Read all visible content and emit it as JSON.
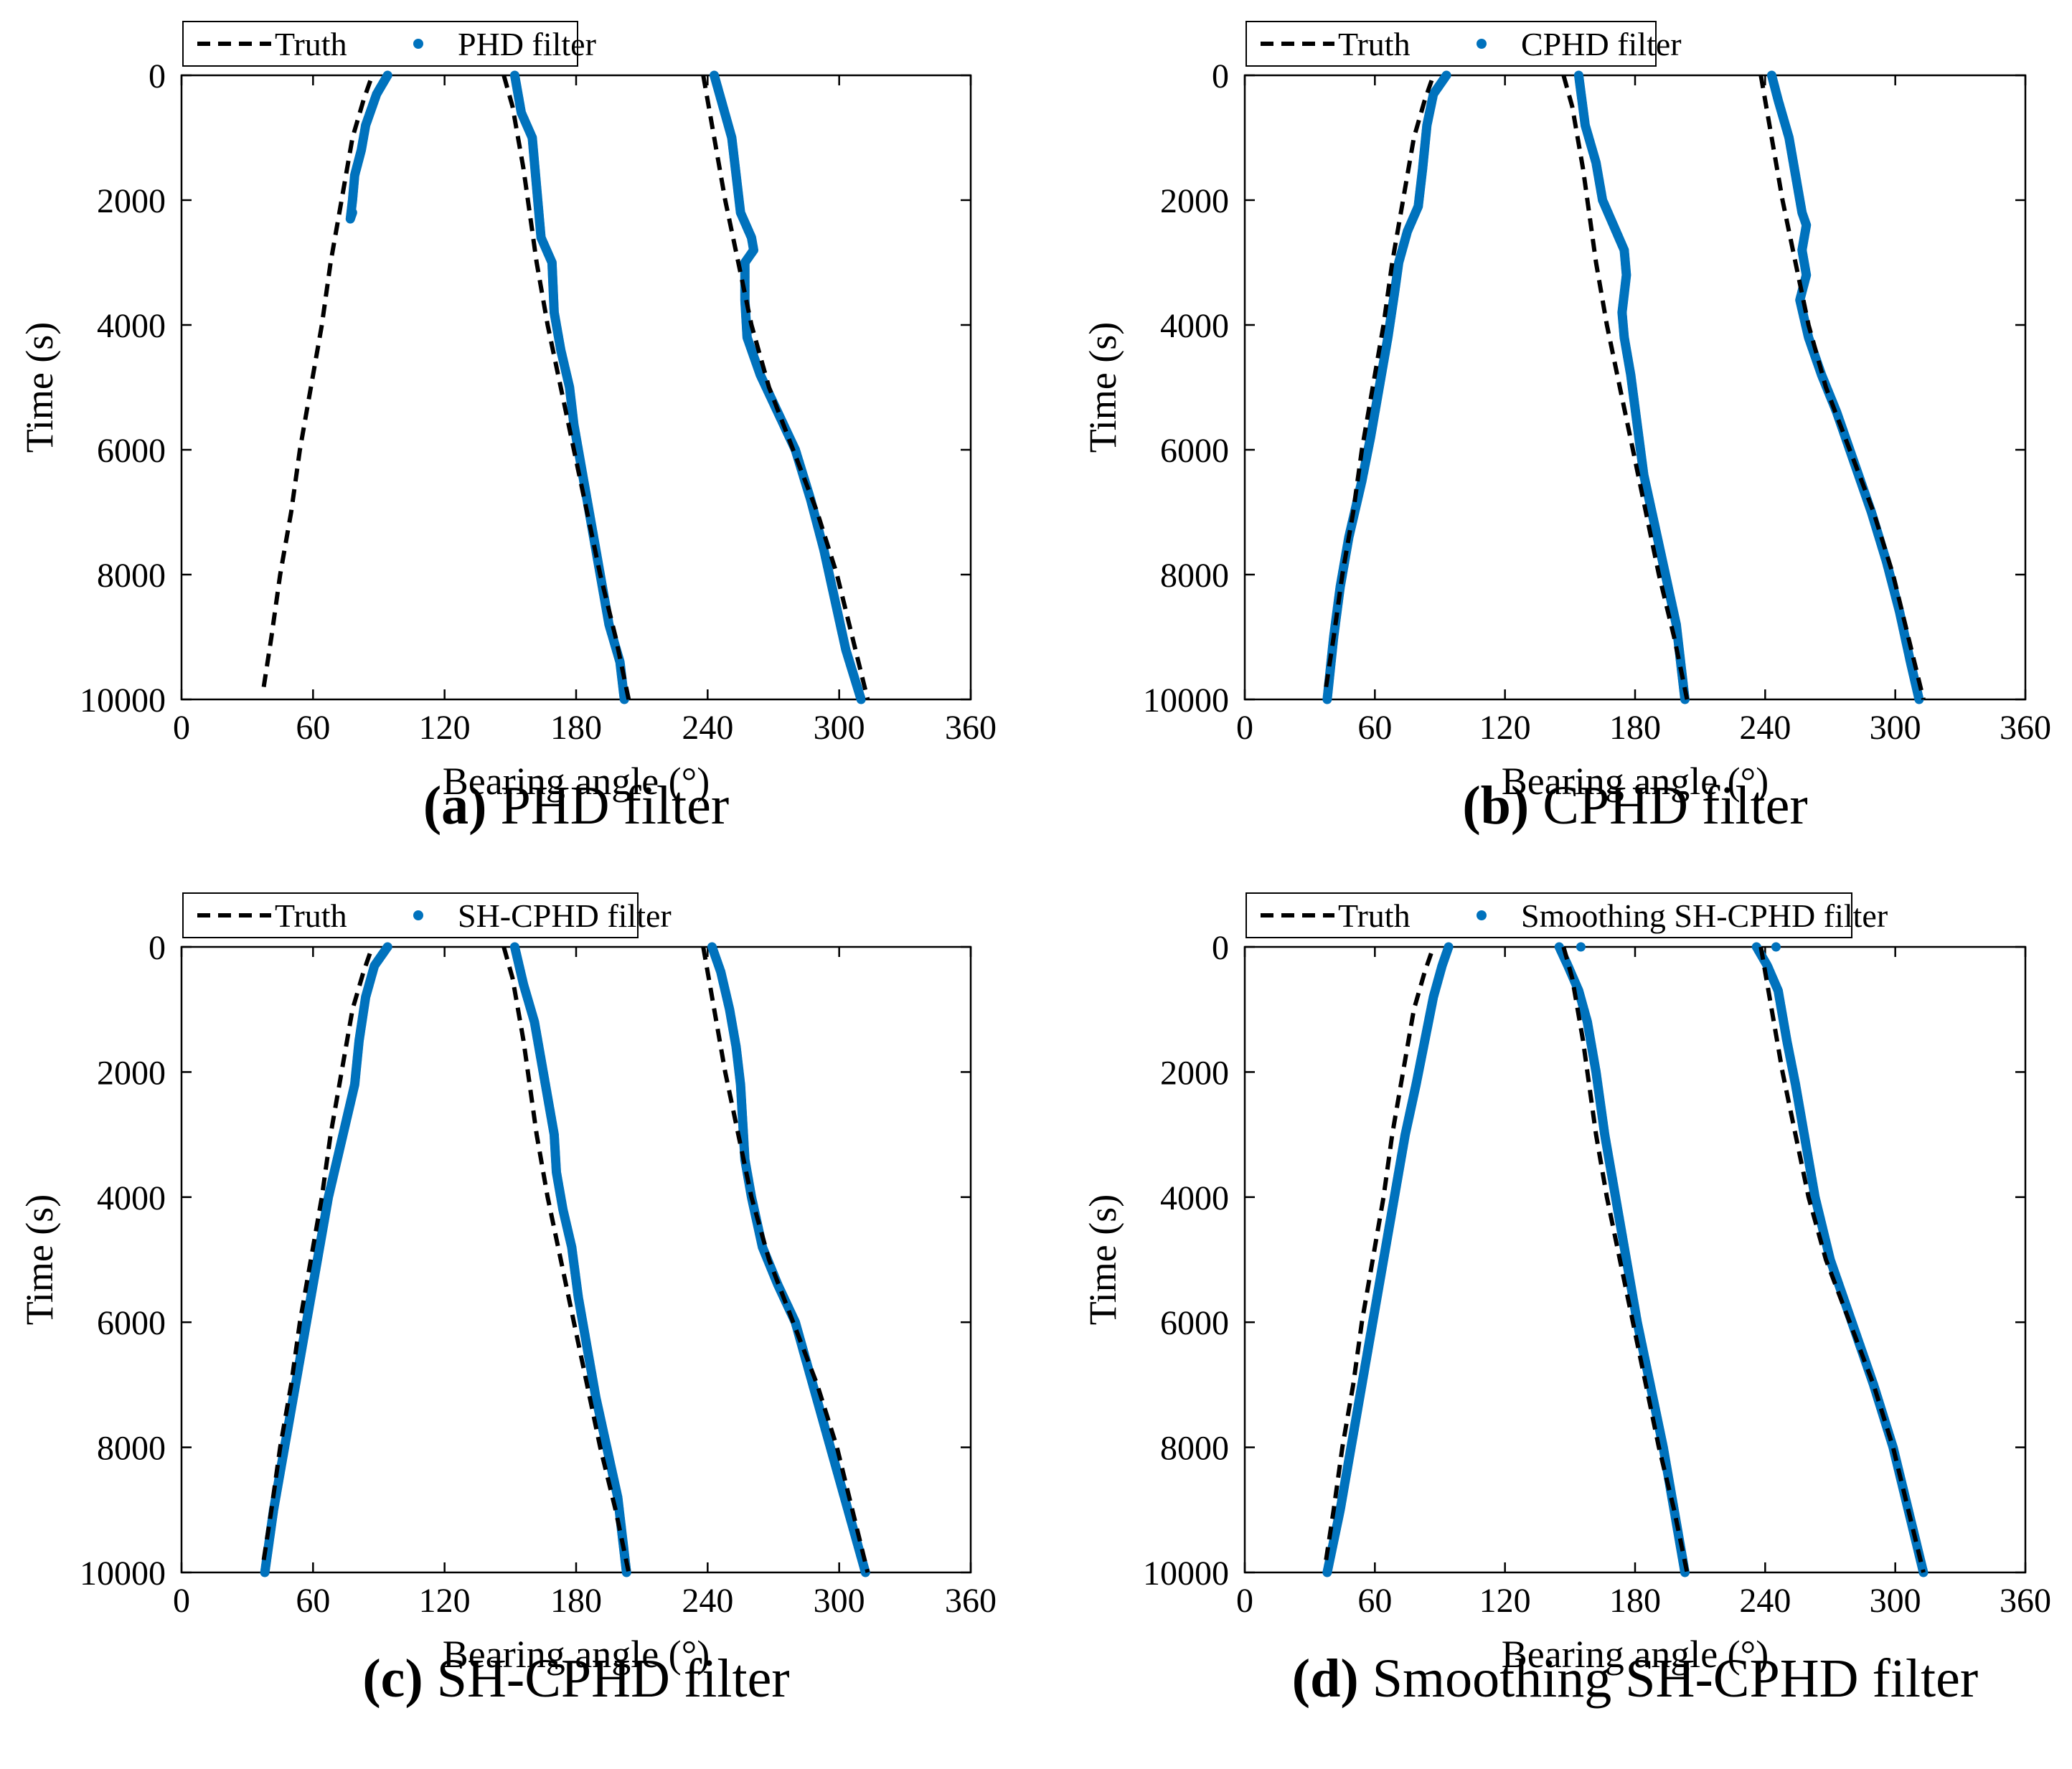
{
  "colors": {
    "truth": "#000000",
    "estimate": "#0072BD",
    "axes": "#000000",
    "background": "#ffffff"
  },
  "truth_tracks": [
    {
      "name": "target-1",
      "points": [
        [
          37.5,
          9800
        ],
        [
          41,
          9000
        ],
        [
          45,
          8000
        ],
        [
          50,
          7000
        ],
        [
          54,
          6000
        ],
        [
          59,
          5000
        ],
        [
          64,
          4000
        ],
        [
          68,
          3000
        ],
        [
          73,
          2000
        ],
        [
          78,
          1000
        ],
        [
          83,
          400
        ],
        [
          87,
          0
        ]
      ]
    },
    {
      "name": "target-2",
      "points": [
        [
          147,
          0
        ],
        [
          151,
          500
        ],
        [
          156,
          1500
        ],
        [
          162,
          3000
        ],
        [
          167,
          4000
        ],
        [
          173,
          5000
        ],
        [
          179,
          6000
        ],
        [
          185,
          7000
        ],
        [
          191,
          8000
        ],
        [
          198,
          9000
        ],
        [
          204,
          10000
        ]
      ]
    },
    {
      "name": "target-3",
      "points": [
        [
          238,
          0
        ],
        [
          243,
          1000
        ],
        [
          248,
          2000
        ],
        [
          254,
          3000
        ],
        [
          260,
          4000
        ],
        [
          268,
          5000
        ],
        [
          279,
          6000
        ],
        [
          290,
          7000
        ],
        [
          299,
          8000
        ],
        [
          306,
          9000
        ],
        [
          313,
          10000
        ]
      ]
    }
  ],
  "chart_data": [
    {
      "type": "line",
      "id": "a",
      "caption_letter": "(a)",
      "caption_text": "PHD filter",
      "legend": {
        "truth": "Truth",
        "estimate": "PHD filter"
      },
      "xlabel": "Bearing angle (°)",
      "ylabel": "Time (s)",
      "xlim": [
        0,
        360
      ],
      "ylim": [
        0,
        10000
      ],
      "y_reversed": true,
      "xticks": [
        0,
        60,
        120,
        180,
        240,
        300,
        360
      ],
      "yticks": [
        0,
        2000,
        4000,
        6000,
        8000,
        10000
      ],
      "grid": false,
      "truth_series": [
        "target-1",
        "target-2",
        "target-3"
      ],
      "estimate_series": [
        {
          "name": "estimate-1",
          "points": [
            [
              94,
              0
            ],
            [
              89,
              300
            ],
            [
              84,
              800
            ],
            [
              82,
              1200
            ],
            [
              79,
              1600
            ],
            [
              78,
              2000
            ],
            [
              77,
              2300
            ],
            [
              78,
              2200
            ]
          ]
        },
        {
          "name": "estimate-2",
          "points": [
            [
              152,
              0
            ],
            [
              155,
              600
            ],
            [
              160,
              1000
            ],
            [
              162,
              1800
            ],
            [
              164,
              2600
            ],
            [
              169,
              3000
            ],
            [
              170,
              3800
            ],
            [
              173,
              4400
            ],
            [
              177,
              5000
            ],
            [
              179,
              5600
            ],
            [
              183,
              6400
            ],
            [
              187,
              7200
            ],
            [
              191,
              8000
            ],
            [
              195,
              8800
            ],
            [
              200,
              9400
            ],
            [
              202,
              10000
            ]
          ]
        },
        {
          "name": "estimate-3",
          "points": [
            [
              243,
              0
            ],
            [
              247,
              500
            ],
            [
              251,
              1000
            ],
            [
              253,
              1600
            ],
            [
              255,
              2200
            ],
            [
              260,
              2600
            ],
            [
              261,
              2800
            ],
            [
              257,
              3000
            ],
            [
              257,
              3600
            ],
            [
              258,
              4200
            ],
            [
              264,
              4800
            ],
            [
              272,
              5400
            ],
            [
              280,
              6000
            ],
            [
              287,
              6800
            ],
            [
              293,
              7600
            ],
            [
              298,
              8400
            ],
            [
              303,
              9200
            ],
            [
              310,
              10000
            ]
          ]
        }
      ]
    },
    {
      "type": "line",
      "id": "b",
      "caption_letter": "(b)",
      "caption_text": "CPHD filter",
      "legend": {
        "truth": "Truth",
        "estimate": "CPHD filter"
      },
      "xlabel": "Bearing angle (°)",
      "ylabel": "Time (s)",
      "xlim": [
        0,
        360
      ],
      "ylim": [
        0,
        10000
      ],
      "y_reversed": true,
      "xticks": [
        0,
        60,
        120,
        180,
        240,
        300,
        360
      ],
      "yticks": [
        0,
        2000,
        4000,
        6000,
        8000,
        10000
      ],
      "grid": false,
      "truth_series": [
        "target-1",
        "target-2",
        "target-3"
      ],
      "estimate_series": [
        {
          "name": "estimate-1",
          "points": [
            [
              93,
              0
            ],
            [
              87,
              300
            ],
            [
              84,
              800
            ],
            [
              82,
              1500
            ],
            [
              80,
              2100
            ],
            [
              75,
              2500
            ],
            [
              71,
              3000
            ],
            [
              69,
              3500
            ],
            [
              66,
              4200
            ],
            [
              62,
              5000
            ],
            [
              58,
              5800
            ],
            [
              54,
              6500
            ],
            [
              48,
              7400
            ],
            [
              44,
              8200
            ],
            [
              41,
              9000
            ],
            [
              38,
              10000
            ]
          ]
        },
        {
          "name": "estimate-2",
          "points": [
            [
              154,
              0
            ],
            [
              157,
              800
            ],
            [
              162,
              1400
            ],
            [
              165,
              2000
            ],
            [
              170,
              2400
            ],
            [
              175,
              2800
            ],
            [
              176,
              3200
            ],
            [
              174,
              3800
            ],
            [
              175,
              4200
            ],
            [
              178,
              4800
            ],
            [
              181,
              5600
            ],
            [
              184,
              6400
            ],
            [
              189,
              7200
            ],
            [
              194,
              8000
            ],
            [
              199,
              8800
            ],
            [
              203,
              10000
            ]
          ]
        },
        {
          "name": "estimate-3",
          "points": [
            [
              243,
              0
            ],
            [
              246,
              400
            ],
            [
              251,
              1000
            ],
            [
              254,
              1600
            ],
            [
              257,
              2200
            ],
            [
              259,
              2400
            ],
            [
              257,
              2800
            ],
            [
              259,
              3200
            ],
            [
              256,
              3600
            ],
            [
              260,
              4200
            ],
            [
              266,
              4800
            ],
            [
              273,
              5400
            ],
            [
              281,
              6200
            ],
            [
              289,
              7000
            ],
            [
              296,
              7800
            ],
            [
              302,
              8600
            ],
            [
              307,
              9400
            ],
            [
              311,
              10000
            ]
          ]
        }
      ]
    },
    {
      "type": "line",
      "id": "c",
      "caption_letter": "(c)",
      "caption_text": "SH-CPHD filter",
      "legend": {
        "truth": "Truth",
        "estimate": "SH-CPHD filter"
      },
      "xlabel": "Bearing angle (°)",
      "ylabel": "Time (s)",
      "xlim": [
        0,
        360
      ],
      "ylim": [
        0,
        10000
      ],
      "y_reversed": true,
      "xticks": [
        0,
        60,
        120,
        180,
        240,
        300,
        360
      ],
      "yticks": [
        0,
        2000,
        4000,
        6000,
        8000,
        10000
      ],
      "grid": false,
      "truth_series": [
        "target-1",
        "target-2",
        "target-3"
      ],
      "estimate_series": [
        {
          "name": "estimate-1",
          "points": [
            [
              94,
              0
            ],
            [
              88,
              300
            ],
            [
              84,
              800
            ],
            [
              81,
              1500
            ],
            [
              79,
              2200
            ],
            [
              75,
              2800
            ],
            [
              71,
              3400
            ],
            [
              67,
              4000
            ],
            [
              62,
              5000
            ],
            [
              57,
              6000
            ],
            [
              52,
              7000
            ],
            [
              47,
              8000
            ],
            [
              42,
              9000
            ],
            [
              38,
              10000
            ]
          ]
        },
        {
          "name": "estimate-2",
          "points": [
            [
              152,
              0
            ],
            [
              156,
              600
            ],
            [
              161,
              1200
            ],
            [
              164,
              1800
            ],
            [
              167,
              2400
            ],
            [
              170,
              3000
            ],
            [
              171,
              3600
            ],
            [
              174,
              4200
            ],
            [
              178,
              4800
            ],
            [
              181,
              5600
            ],
            [
              185,
              6400
            ],
            [
              189,
              7200
            ],
            [
              194,
              8000
            ],
            [
              199,
              8800
            ],
            [
              203,
              10000
            ]
          ]
        },
        {
          "name": "estimate-3",
          "points": [
            [
              242,
              0
            ],
            [
              246,
              400
            ],
            [
              250,
              1000
            ],
            [
              253,
              1600
            ],
            [
              255,
              2200
            ],
            [
              256,
              2800
            ],
            [
              257,
              3400
            ],
            [
              260,
              4000
            ],
            [
              265,
              4800
            ],
            [
              272,
              5400
            ],
            [
              280,
              6000
            ],
            [
              288,
              7000
            ],
            [
              296,
              8000
            ],
            [
              304,
              9000
            ],
            [
              312,
              10000
            ]
          ]
        }
      ]
    },
    {
      "type": "line",
      "id": "d",
      "caption_letter": "(d)",
      "caption_text": "Smoothing SH-CPHD filter",
      "legend": {
        "truth": "Truth",
        "estimate": "Smoothing SH-CPHD filter"
      },
      "xlabel": "Bearing angle (°)",
      "ylabel": "Time (s)",
      "xlim": [
        0,
        360
      ],
      "ylim": [
        0,
        10000
      ],
      "y_reversed": true,
      "xticks": [
        0,
        60,
        120,
        180,
        240,
        300,
        360
      ],
      "yticks": [
        0,
        2000,
        4000,
        6000,
        8000,
        10000
      ],
      "grid": false,
      "truth_series": [
        "target-1",
        "target-2",
        "target-3"
      ],
      "estimate_series": [
        {
          "name": "estimate-1",
          "points": [
            [
              94,
              0
            ],
            [
              91,
              300
            ],
            [
              87,
              800
            ],
            [
              83,
              1500
            ],
            [
              79,
              2200
            ],
            [
              74,
              3000
            ],
            [
              69,
              4000
            ],
            [
              64,
              5000
            ],
            [
              59,
              6000
            ],
            [
              54,
              7000
            ],
            [
              49,
              8000
            ],
            [
              44,
              9000
            ],
            [
              38,
              10000
            ]
          ]
        },
        {
          "name": "estimate-2",
          "points": [
            [
              145,
              0
            ],
            [
              149,
              300
            ],
            [
              154,
              700
            ],
            [
              158,
              1200
            ],
            [
              162,
              2000
            ],
            [
              166,
              3000
            ],
            [
              171,
              4000
            ],
            [
              176,
              5000
            ],
            [
              181,
              6000
            ],
            [
              187,
              7000
            ],
            [
              193,
              8000
            ],
            [
              198,
              9000
            ],
            [
              203,
              10000
            ]
          ]
        },
        {
          "name": "estimate-3",
          "points": [
            [
              236,
              0
            ],
            [
              241,
              300
            ],
            [
              246,
              700
            ],
            [
              250,
              1500
            ],
            [
              254,
              2200
            ],
            [
              258,
              3000
            ],
            [
              263,
              4000
            ],
            [
              270,
              5000
            ],
            [
              280,
              6000
            ],
            [
              290,
              7000
            ],
            [
              299,
              8000
            ],
            [
              306,
              9000
            ],
            [
              313,
              10000
            ]
          ]
        },
        {
          "name": "estimate-outlier-1",
          "points": [
            [
              155,
              0
            ]
          ]
        },
        {
          "name": "estimate-outlier-2",
          "points": [
            [
              245,
              0
            ]
          ]
        }
      ]
    }
  ]
}
